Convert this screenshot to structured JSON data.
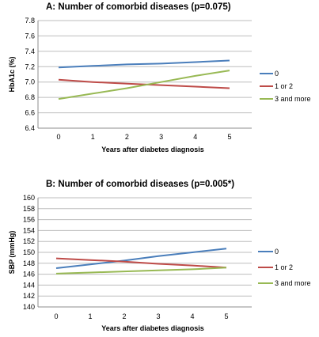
{
  "chart_data": [
    {
      "type": "line",
      "title": "A: Number of comorbid diseases (p=0.075)",
      "xlabel": "Years after diabetes diagnosis",
      "ylabel": "HbA1c (%)",
      "x": [
        0,
        1,
        2,
        3,
        4,
        5
      ],
      "xticks": [
        "0",
        "1",
        "2",
        "3",
        "4",
        "5"
      ],
      "ylim": [
        6.4,
        7.8
      ],
      "yticks": [
        "6.4",
        "6.6",
        "6.8",
        "7.0",
        "7.2",
        "7.4",
        "7.6",
        "7.8"
      ],
      "grid": true,
      "legend": "right",
      "series": [
        {
          "name": "0",
          "color": "#4a7ebb",
          "values": [
            7.19,
            7.21,
            7.23,
            7.24,
            7.26,
            7.28
          ]
        },
        {
          "name": "1 or 2",
          "color": "#be4b48",
          "values": [
            7.03,
            7.0,
            6.98,
            6.96,
            6.94,
            6.92
          ]
        },
        {
          "name": "3 and more",
          "color": "#98b954",
          "values": [
            6.78,
            6.85,
            6.92,
            7.0,
            7.08,
            7.15
          ]
        }
      ]
    },
    {
      "type": "line",
      "title": "B: Number of comorbid diseases (p=0.005*)",
      "xlabel": "Years after diabetes diagnosis",
      "ylabel": "SBP (mmHg)",
      "x": [
        0,
        1,
        2,
        3,
        4,
        5
      ],
      "xticks": [
        "0",
        "1",
        "2",
        "3",
        "4",
        "5"
      ],
      "ylim": [
        140,
        160
      ],
      "yticks": [
        "140",
        "142",
        "144",
        "146",
        "148",
        "150",
        "152",
        "154",
        "156",
        "158",
        "160"
      ],
      "grid": true,
      "legend": "right",
      "series": [
        {
          "name": "0",
          "color": "#4a7ebb",
          "values": [
            147.1,
            147.8,
            148.5,
            149.3,
            150.0,
            150.7
          ]
        },
        {
          "name": "1 or 2",
          "color": "#be4b48",
          "values": [
            148.9,
            148.6,
            148.3,
            147.9,
            147.6,
            147.2
          ]
        },
        {
          "name": "3 and more",
          "color": "#98b954",
          "values": [
            146.1,
            146.3,
            146.5,
            146.7,
            146.9,
            147.2
          ]
        }
      ]
    }
  ]
}
